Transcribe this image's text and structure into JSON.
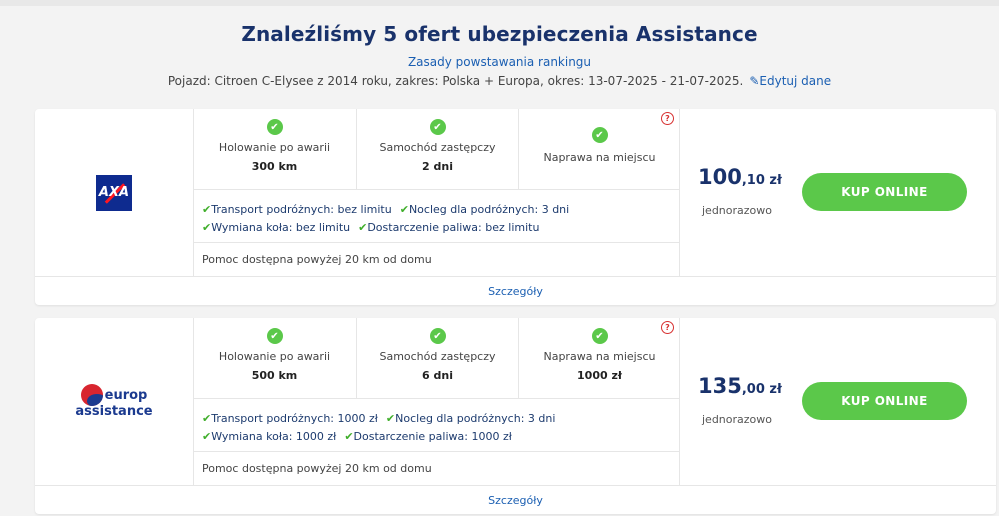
{
  "header": {
    "title": "Znaleźliśmy 5 ofert ubezpieczenia Assistance",
    "ranking_link": "Zasady powstawania rankingu",
    "meta_text": "Pojazd: Citroen C-Elysee z 2014 roku, zakres: Polska + Europa, okres: 13-07-2025 - 21-07-2025.",
    "edit_label": "Edytuj dane"
  },
  "offers": [
    {
      "insurer_logo": "AXA",
      "features": [
        {
          "label": "Holowanie po awarii",
          "value": "300 km"
        },
        {
          "label": "Samochód zastępczy",
          "value": "2 dni"
        },
        {
          "label": "Naprawa na miejscu",
          "value": ""
        }
      ],
      "extras_line1": [
        "Transport podróżnych: bez limitu",
        "Nocleg dla podróżnych: 3 dni"
      ],
      "extras_line2": [
        "Wymiana koła: bez limitu",
        "Dostarczenie paliwa: bez limitu"
      ],
      "help_text": "Pomoc dostępna powyżej 20 km od domu",
      "price_main": "100",
      "price_cents": ",10 zł",
      "price_note": "jednorazowo",
      "buy_label": "KUP ONLINE",
      "details_label": "Szczegóły"
    },
    {
      "insurer_logo_line1": "europ",
      "insurer_logo_line2": "assistance",
      "features": [
        {
          "label": "Holowanie po awarii",
          "value": "500 km"
        },
        {
          "label": "Samochód zastępczy",
          "value": "6 dni"
        },
        {
          "label": "Naprawa na miejscu",
          "value": "1000 zł"
        }
      ],
      "extras_line1": [
        "Transport podróżnych: 1000 zł",
        "Nocleg dla podróżnych: 3 dni"
      ],
      "extras_line2": [
        "Wymiana koła: 1000 zł",
        "Dostarczenie paliwa: 1000 zł"
      ],
      "help_text": "Pomoc dostępna powyżej 20 km od domu",
      "price_main": "135",
      "price_cents": ",00 zł",
      "price_note": "jednorazowo",
      "buy_label": "KUP ONLINE",
      "details_label": "Szczegóły"
    }
  ],
  "colors": {
    "accent_green": "#5bc84a",
    "title_navy": "#19326b",
    "link_blue": "#1b5fb2",
    "help_red": "#d73131"
  },
  "icons": {
    "check": "check-circle-icon",
    "help": "question-circle-icon",
    "edit": "pencil-icon"
  }
}
